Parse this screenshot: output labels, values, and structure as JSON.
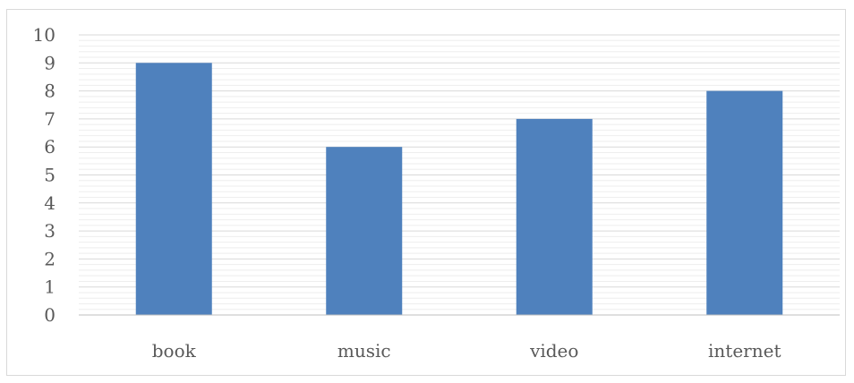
{
  "chart_data": {
    "type": "bar",
    "categories": [
      "book",
      "music",
      "video",
      "internet"
    ],
    "values": [
      9,
      6,
      7,
      8
    ],
    "title": "",
    "xlabel": "",
    "ylabel": "",
    "ylim": [
      0,
      10
    ],
    "yticks": [
      "0",
      "1",
      "2",
      "3",
      "4",
      "5",
      "6",
      "7",
      "8",
      "9",
      "10"
    ],
    "grid": true,
    "legend": "none",
    "colors": {
      "bar": "#4f81bd",
      "major_grid": "#d9d9d9",
      "minor_grid": "#eeeeee",
      "axis": "#bfbfbf",
      "text": "#595959"
    }
  }
}
